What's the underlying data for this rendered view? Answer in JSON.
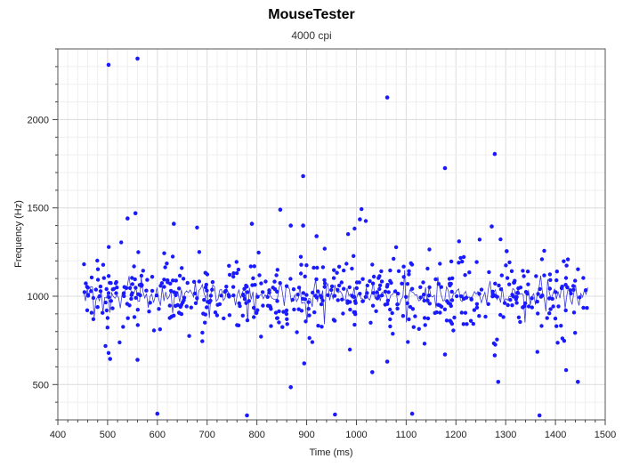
{
  "chart_data": {
    "type": "scatter",
    "title": "MouseTester",
    "subtitle": "4000 cpi",
    "xlabel": "Time (ms)",
    "ylabel": "Frequency (Hz)",
    "xlim": [
      400,
      1500
    ],
    "ylim": [
      300,
      2400
    ],
    "x_ticks": [
      400,
      500,
      600,
      700,
      800,
      900,
      1000,
      1100,
      1200,
      1300,
      1400,
      1500
    ],
    "y_ticks": [
      500,
      1000,
      1500,
      2000
    ],
    "grid": true,
    "point_color": "#1a1aff",
    "line_color": "#3a3ad6",
    "outliers": [
      [
        502,
        2310
      ],
      [
        560,
        2345
      ],
      [
        1062,
        2125
      ],
      [
        893,
        1680
      ],
      [
        1178,
        1725
      ],
      [
        1278,
        1805
      ],
      [
        847,
        1490
      ],
      [
        556,
        1470
      ],
      [
        540,
        1440
      ],
      [
        1007,
        1435
      ],
      [
        790,
        1410
      ],
      [
        633,
        1410
      ],
      [
        1272,
        1395
      ],
      [
        868,
        1400
      ],
      [
        893,
        1400
      ],
      [
        920,
        1340
      ],
      [
        1302,
        1255
      ],
      [
        505,
        645
      ],
      [
        560,
        640
      ],
      [
        1062,
        630
      ],
      [
        1032,
        570
      ],
      [
        1178,
        670
      ],
      [
        1278,
        665
      ],
      [
        1285,
        515
      ],
      [
        1445,
        515
      ],
      [
        868,
        485
      ],
      [
        895,
        620
      ],
      [
        600,
        335
      ],
      [
        780,
        325
      ],
      [
        957,
        330
      ],
      [
        1112,
        335
      ],
      [
        1368,
        325
      ]
    ],
    "band_points": {
      "x_start": 452,
      "x_end": 1465,
      "count": 560,
      "center": 1010,
      "sd": 95,
      "seed": 7
    },
    "running_line": {
      "x_start": 452,
      "x_end": 1465,
      "count": 290,
      "center": 1005,
      "sd": 35,
      "seed": 21
    }
  }
}
